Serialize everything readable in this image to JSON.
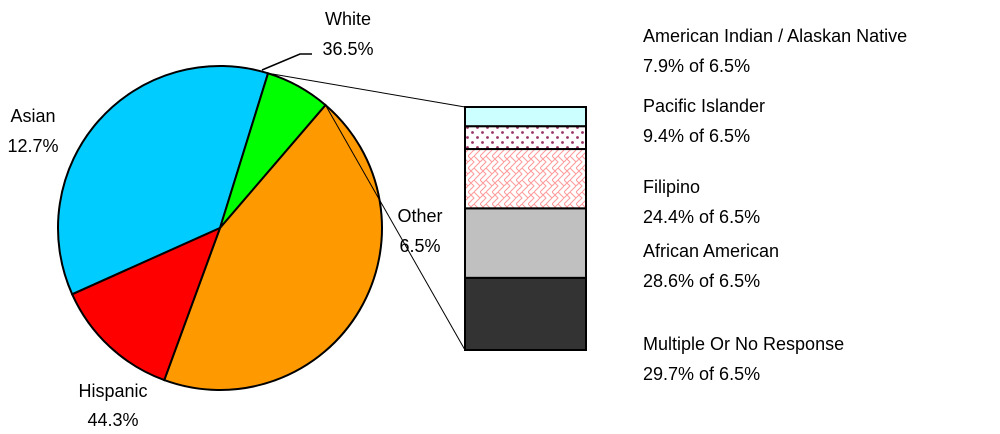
{
  "chart_data": {
    "type": "pie",
    "title": "",
    "slices": [
      {
        "label": "White",
        "value": 36.5,
        "display": "36.5%",
        "color": "#00CCFF"
      },
      {
        "label": "Other",
        "value": 6.5,
        "display": "6.5%",
        "color": "#00FF00"
      },
      {
        "label": "Hispanic",
        "value": 44.3,
        "display": "44.3%",
        "color": "#FF9900"
      },
      {
        "label": "Asian",
        "value": 12.7,
        "display": "12.7%",
        "color": "#FF0000"
      }
    ],
    "breakdown": {
      "of_slice": "Other",
      "type": "stacked-bar",
      "segments": [
        {
          "label": "Multiple Or No Response",
          "value": 29.7,
          "display": "29.7% of 6.5%",
          "color": "#333333",
          "pattern": "solid"
        },
        {
          "label": "African American",
          "value": 28.6,
          "display": "28.6% of 6.5%",
          "color": "#C0C0C0",
          "pattern": "solid"
        },
        {
          "label": "Filipino",
          "value": 24.4,
          "display": "24.4% of 6.5%",
          "color": "#FF9999",
          "pattern": "weave"
        },
        {
          "label": "Pacific Islander",
          "value": 9.4,
          "display": "9.4% of 6.5%",
          "color": "#993366",
          "pattern": "dots"
        },
        {
          "label": "American Indian / Alaskan Native",
          "value": 7.9,
          "display": "7.9% of 6.5%",
          "color": "#CCFFFF",
          "pattern": "solid"
        }
      ]
    }
  }
}
